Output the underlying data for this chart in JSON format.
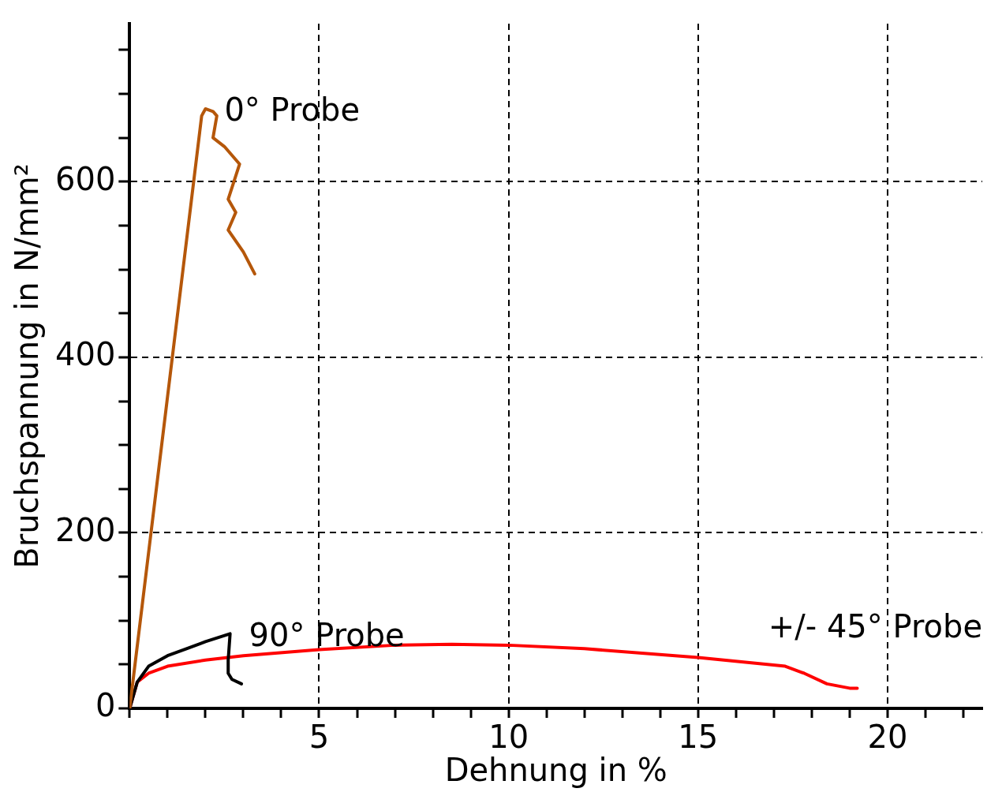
{
  "chart_data": {
    "type": "line",
    "xlabel": "Dehnung in %",
    "ylabel": "Bruchspannung in N/mm²",
    "xlim": [
      0,
      22.5
    ],
    "ylim": [
      0,
      780
    ],
    "xticks": [
      {
        "value": 0,
        "label": null
      },
      {
        "value": 1,
        "label": null
      },
      {
        "value": 2,
        "label": null
      },
      {
        "value": 3,
        "label": null
      },
      {
        "value": 4,
        "label": null
      },
      5,
      {
        "value": 6,
        "label": null
      },
      {
        "value": 7,
        "label": null
      },
      {
        "value": 8,
        "label": null
      },
      {
        "value": 9,
        "label": null
      },
      10,
      {
        "value": 11,
        "label": null
      },
      {
        "value": 12,
        "label": null
      },
      {
        "value": 13,
        "label": null
      },
      {
        "value": 14,
        "label": null
      },
      15,
      {
        "value": 16,
        "label": null
      },
      {
        "value": 17,
        "label": null
      },
      {
        "value": 18,
        "label": null
      },
      {
        "value": 19,
        "label": null
      },
      20,
      {
        "value": 21,
        "label": null
      },
      {
        "value": 22,
        "label": null
      }
    ],
    "yticks": [
      0,
      {
        "value": 50,
        "label": null
      },
      {
        "value": 100,
        "label": null
      },
      {
        "value": 150,
        "label": null
      },
      200,
      {
        "value": 250,
        "label": null
      },
      {
        "value": 300,
        "label": null
      },
      {
        "value": 350,
        "label": null
      },
      400,
      {
        "value": 450,
        "label": null
      },
      {
        "value": 500,
        "label": null
      },
      {
        "value": 550,
        "label": null
      },
      600,
      {
        "value": 650,
        "label": null
      },
      {
        "value": 700,
        "label": null
      },
      {
        "value": 750,
        "label": null
      }
    ],
    "grid": true,
    "legend": false,
    "marker": "none",
    "line_style": "solid",
    "series": [
      {
        "name": "0° Probe",
        "color": "#b5570a",
        "x": [
          0,
          1.9,
          2.0,
          2.2,
          2.3,
          2.2,
          2.5,
          2.9,
          2.6,
          2.8,
          2.6,
          3.0,
          3.3
        ],
        "values": [
          0,
          675,
          683,
          680,
          675,
          650,
          640,
          620,
          580,
          565,
          545,
          520,
          495
        ]
      },
      {
        "name": "90° Probe",
        "color": "#000000",
        "x": [
          0,
          0.2,
          0.5,
          1,
          1.5,
          2,
          2.65,
          2.6,
          2.6,
          2.7,
          2.95
        ],
        "values": [
          0,
          30,
          48,
          60,
          68,
          76,
          85,
          55,
          40,
          33,
          28
        ]
      },
      {
        "name": "+/- 45° Probe",
        "color": "#ff0000",
        "x": [
          0,
          0.2,
          0.5,
          1,
          2,
          3,
          5,
          7,
          8.5,
          10,
          12,
          15,
          17.3,
          17.8,
          18.4,
          19,
          19.2
        ],
        "values": [
          0,
          30,
          40,
          48,
          55,
          60,
          67,
          72,
          73,
          72,
          68,
          58,
          48,
          40,
          28,
          23,
          23
        ]
      }
    ]
  }
}
